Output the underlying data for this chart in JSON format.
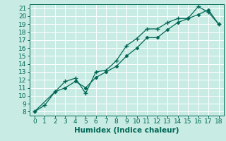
{
  "xlabel": "Humidex (Indice chaleur)",
  "bg_color": "#c8ece4",
  "line_color": "#006655",
  "grid_color": "#b0d8d0",
  "xlim": [
    -0.5,
    18.5
  ],
  "ylim": [
    7.5,
    21.5
  ],
  "xticks": [
    0,
    1,
    2,
    3,
    4,
    5,
    6,
    7,
    8,
    9,
    10,
    11,
    12,
    13,
    14,
    15,
    16,
    17,
    18
  ],
  "yticks": [
    8,
    9,
    10,
    11,
    12,
    13,
    14,
    15,
    16,
    17,
    18,
    19,
    20,
    21
  ],
  "line1_x": [
    0,
    1,
    2,
    3,
    4,
    5,
    6,
    7,
    8,
    9,
    10,
    11,
    12,
    13,
    14,
    15,
    16,
    17,
    18
  ],
  "line1_y": [
    8.0,
    8.8,
    10.5,
    11.8,
    12.2,
    10.3,
    13.0,
    13.2,
    14.4,
    16.3,
    17.2,
    18.4,
    18.4,
    19.2,
    19.7,
    19.7,
    21.2,
    20.5,
    19.0
  ],
  "line2_x": [
    0,
    2,
    3,
    4,
    5,
    6,
    7,
    8,
    9,
    10,
    11,
    12,
    13,
    14,
    15,
    16,
    17,
    18
  ],
  "line2_y": [
    8.0,
    10.5,
    11.0,
    11.8,
    11.0,
    12.3,
    13.0,
    13.7,
    15.0,
    16.0,
    17.3,
    17.3,
    18.3,
    19.2,
    19.7,
    20.2,
    20.8,
    19.0
  ],
  "tick_fontsize": 6.5,
  "xlabel_fontsize": 7.5
}
